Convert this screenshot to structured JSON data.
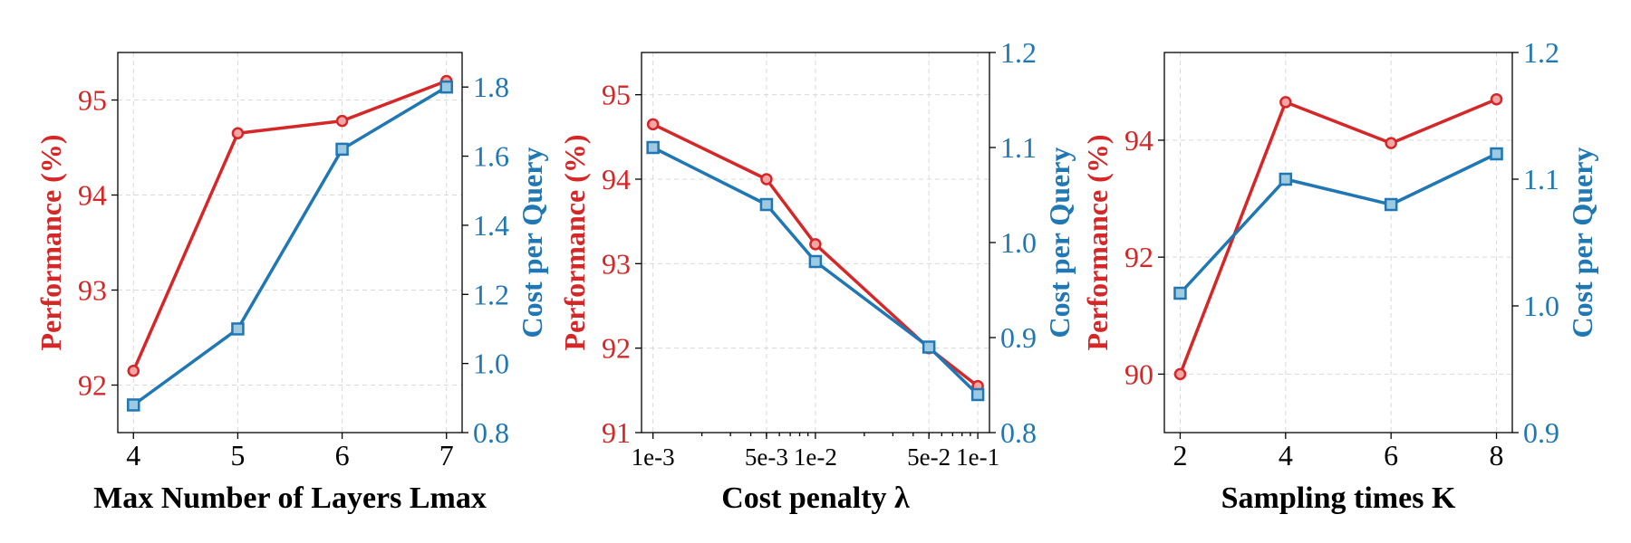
{
  "colors": {
    "performance": "#d62728",
    "cost": "#1f77b4",
    "cost_marker_fill": "#9ecae1",
    "perf_marker_fill": "#f4a5a6"
  },
  "chart_data": [
    {
      "type": "line",
      "xlabel": "Max Number of Layers Lmax",
      "ylabel_left": "Performance (%)",
      "ylabel_right": "Cost per Query",
      "x_scale": "linear",
      "x": [
        4,
        5,
        6,
        7
      ],
      "x_tick_labels": [
        "4",
        "5",
        "6",
        "7"
      ],
      "xlim": [
        3.85,
        7.15
      ],
      "ylim_left": [
        91.5,
        95.5
      ],
      "y_ticks_left": [
        92,
        93,
        94,
        95
      ],
      "ylim_right": [
        0.8,
        1.9
      ],
      "y_ticks_right": [
        0.8,
        1.0,
        1.2,
        1.4,
        1.6,
        1.8
      ],
      "y_tick_labels_right": [
        "0.8",
        "1.0",
        "1.2",
        "1.4",
        "1.6",
        "1.8"
      ],
      "grid": true,
      "series": [
        {
          "axis": "left",
          "color": "#d62728",
          "marker": "circle",
          "values": [
            92.15,
            94.65,
            94.78,
            95.2
          ]
        },
        {
          "axis": "right",
          "color": "#1f77b4",
          "marker": "square",
          "values": [
            0.88,
            1.1,
            1.62,
            1.8
          ]
        }
      ]
    },
    {
      "type": "line",
      "xlabel": "Cost penalty λ",
      "ylabel_left": "Performance (%)",
      "ylabel_right": "Cost per Query",
      "x_scale": "log",
      "x": [
        0.001,
        0.005,
        0.01,
        0.05,
        0.1
      ],
      "x_tick_labels": [
        "1e-3",
        "5e-3",
        "1e-2",
        "5e-2",
        "1e-1"
      ],
      "xlim": [
        0.00085,
        0.118
      ],
      "ylim_left": [
        91,
        95.5
      ],
      "y_ticks_left": [
        91,
        92,
        93,
        94,
        95
      ],
      "ylim_right": [
        0.8,
        1.2
      ],
      "y_ticks_right": [
        0.8,
        0.9,
        1.0,
        1.1,
        1.2
      ],
      "y_tick_labels_right": [
        "0.8",
        "0.9",
        "1.0",
        "1.1",
        "1.2"
      ],
      "grid": true,
      "series": [
        {
          "axis": "left",
          "color": "#d62728",
          "marker": "circle",
          "values": [
            94.65,
            94.0,
            93.23,
            92.0,
            91.55
          ]
        },
        {
          "axis": "right",
          "color": "#1f77b4",
          "marker": "square",
          "values": [
            1.1,
            1.04,
            0.98,
            0.89,
            0.84
          ]
        }
      ]
    },
    {
      "type": "line",
      "xlabel": "Sampling times K",
      "ylabel_left": "Performance (%)",
      "ylabel_right": "Cost per Query",
      "x_scale": "linear",
      "x": [
        2,
        4,
        6,
        8
      ],
      "x_tick_labels": [
        "2",
        "4",
        "6",
        "8"
      ],
      "xlim": [
        1.7,
        8.3
      ],
      "ylim_left": [
        89,
        95.5
      ],
      "y_ticks_left": [
        90,
        92,
        94
      ],
      "ylim_right": [
        0.9,
        1.2
      ],
      "y_ticks_right": [
        0.9,
        1.0,
        1.1,
        1.2
      ],
      "y_tick_labels_right": [
        "0.9",
        "1.0",
        "1.1",
        "1.2"
      ],
      "grid": true,
      "series": [
        {
          "axis": "left",
          "color": "#d62728",
          "marker": "circle",
          "values": [
            90.0,
            94.65,
            93.95,
            94.7
          ]
        },
        {
          "axis": "right",
          "color": "#1f77b4",
          "marker": "square",
          "values": [
            1.01,
            1.1,
            1.08,
            1.12
          ]
        }
      ]
    }
  ]
}
